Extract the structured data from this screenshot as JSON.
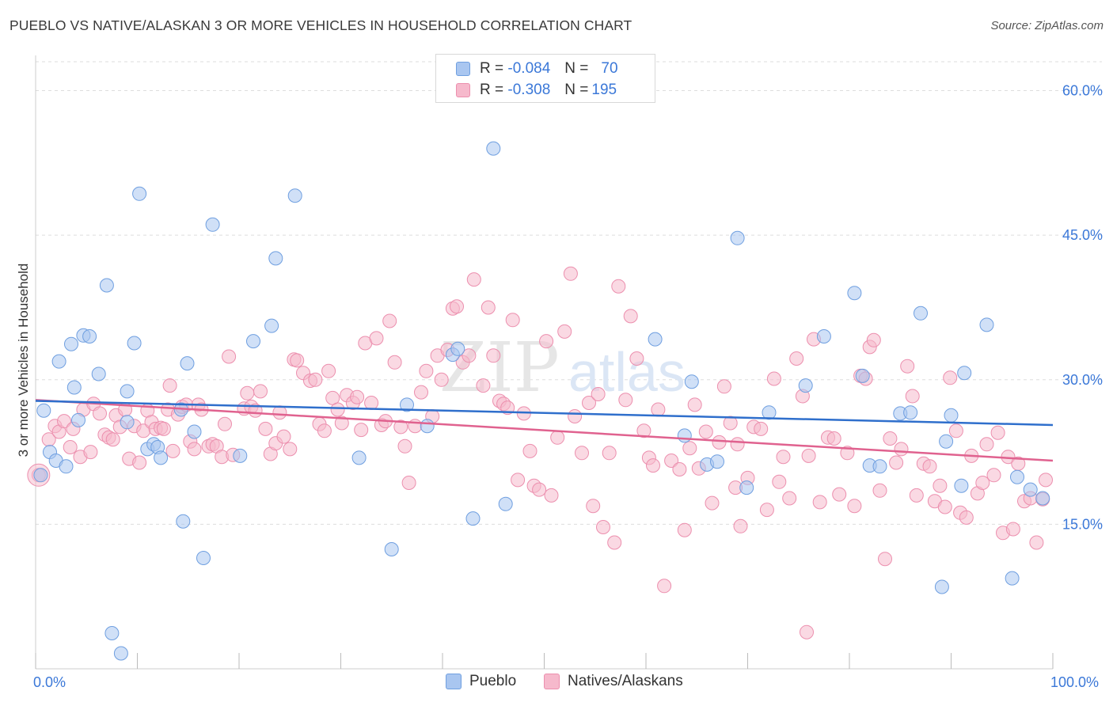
{
  "title": "PUEBLO VS NATIVE/ALASKAN 3 OR MORE VEHICLES IN HOUSEHOLD CORRELATION CHART",
  "source": "Source: ZipAtlas.com",
  "watermark": {
    "zip": "ZIP",
    "atlas": "atlas"
  },
  "legend": {
    "rows": [
      {
        "r_label": "R =",
        "r_value": "-0.084",
        "n_label": "N =",
        "n_value": "70"
      },
      {
        "r_label": "R =",
        "r_value": "-0.308",
        "n_label": "N =",
        "n_value": "195"
      }
    ]
  },
  "bottom_legend": [
    "Pueblo",
    "Natives/Alaskans"
  ],
  "colors": {
    "pueblo_fill": "#a9c6f0",
    "pueblo_stroke": "#6f9fe0",
    "pueblo_line": "#2f6fcc",
    "native_fill": "#f6b9cc",
    "native_stroke": "#ec8fae",
    "native_line": "#e0628f",
    "tick_label": "#3b78d8",
    "grid": "#dddddd"
  },
  "chart_data": {
    "type": "scatter",
    "title": "PUEBLO VS NATIVE/ALASKAN 3 OR MORE VEHICLES IN HOUSEHOLD CORRELATION CHART",
    "xlabel": "",
    "ylabel": "3 or more Vehicles in Household",
    "xlim": [
      0,
      100
    ],
    "ylim": [
      0,
      63
    ],
    "x_tick_labels": [
      "0.0%",
      "100.0%"
    ],
    "y_ticks": [
      15,
      30,
      45,
      60
    ],
    "y_tick_labels": [
      "15.0%",
      "30.0%",
      "45.0%",
      "60.0%"
    ],
    "series": [
      {
        "name": "Pueblo",
        "trend": {
          "x": [
            0,
            100
          ],
          "y": [
            27.8,
            25.3
          ]
        },
        "points": [
          [
            0.5,
            20.1
          ],
          [
            0.8,
            26.8
          ],
          [
            1.4,
            22.5
          ],
          [
            2.0,
            21.6
          ],
          [
            2.3,
            31.9
          ],
          [
            3.0,
            21.0
          ],
          [
            3.5,
            33.7
          ],
          [
            3.8,
            29.2
          ],
          [
            4.2,
            25.8
          ],
          [
            4.7,
            34.6
          ],
          [
            5.3,
            34.5
          ],
          [
            6.2,
            30.6
          ],
          [
            7.0,
            39.8
          ],
          [
            7.5,
            3.7
          ],
          [
            8.4,
            1.6
          ],
          [
            9.0,
            25.6
          ],
          [
            9.0,
            28.8
          ],
          [
            9.7,
            33.8
          ],
          [
            10.2,
            49.3
          ],
          [
            11.0,
            22.8
          ],
          [
            11.6,
            23.3
          ],
          [
            12.0,
            23.0
          ],
          [
            12.3,
            21.9
          ],
          [
            14.3,
            26.9
          ],
          [
            14.5,
            15.3
          ],
          [
            14.9,
            31.7
          ],
          [
            15.6,
            24.6
          ],
          [
            16.5,
            11.5
          ],
          [
            17.4,
            46.1
          ],
          [
            20.1,
            22.1
          ],
          [
            21.4,
            34.0
          ],
          [
            23.2,
            35.6
          ],
          [
            23.6,
            42.6
          ],
          [
            25.5,
            49.1
          ],
          [
            31.8,
            21.9
          ],
          [
            35.0,
            12.4
          ],
          [
            36.5,
            27.4
          ],
          [
            38.5,
            25.2
          ],
          [
            41.0,
            32.6
          ],
          [
            41.5,
            33.2
          ],
          [
            43.0,
            15.6
          ],
          [
            45.0,
            54.0
          ],
          [
            46.2,
            17.1
          ],
          [
            60.9,
            34.2
          ],
          [
            63.8,
            24.2
          ],
          [
            64.5,
            29.8
          ],
          [
            66.0,
            21.2
          ],
          [
            67.0,
            21.5
          ],
          [
            69.0,
            44.7
          ],
          [
            69.9,
            18.8
          ],
          [
            72.1,
            26.6
          ],
          [
            75.7,
            29.4
          ],
          [
            77.5,
            34.5
          ],
          [
            80.5,
            39.0
          ],
          [
            81.3,
            30.4
          ],
          [
            82.0,
            21.1
          ],
          [
            83.0,
            21.0
          ],
          [
            85.0,
            26.5
          ],
          [
            86.0,
            26.6
          ],
          [
            87.0,
            36.9
          ],
          [
            89.1,
            8.5
          ],
          [
            89.5,
            23.6
          ],
          [
            90.0,
            26.3
          ],
          [
            91.0,
            19.0
          ],
          [
            91.3,
            30.7
          ],
          [
            93.5,
            35.7
          ],
          [
            96.0,
            9.4
          ],
          [
            96.5,
            19.9
          ],
          [
            97.8,
            18.6
          ],
          [
            99.0,
            17.7
          ]
        ]
      },
      {
        "name": "Natives/Alaskans",
        "trend": {
          "x": [
            0,
            100
          ],
          "y": [
            27.9,
            21.6
          ]
        },
        "points": [
          [
            0.3,
            20.1
          ],
          [
            1.3,
            23.8
          ],
          [
            1.9,
            25.2
          ],
          [
            2.3,
            24.6
          ],
          [
            2.8,
            25.7
          ],
          [
            3.4,
            23.0
          ],
          [
            3.7,
            24.9
          ],
          [
            4.4,
            22.0
          ],
          [
            4.7,
            26.9
          ],
          [
            5.4,
            22.5
          ],
          [
            5.7,
            27.5
          ],
          [
            6.3,
            26.5
          ],
          [
            6.8,
            24.3
          ],
          [
            7.2,
            24.0
          ],
          [
            7.6,
            23.8
          ],
          [
            7.9,
            26.3
          ],
          [
            8.3,
            25.1
          ],
          [
            8.8,
            26.9
          ],
          [
            9.2,
            21.8
          ],
          [
            9.7,
            25.2
          ],
          [
            10.2,
            21.4
          ],
          [
            10.6,
            24.7
          ],
          [
            11.0,
            26.8
          ],
          [
            11.4,
            25.6
          ],
          [
            11.8,
            24.9
          ],
          [
            12.3,
            25.0
          ],
          [
            12.6,
            24.9
          ],
          [
            13.0,
            26.9
          ],
          [
            13.2,
            29.4
          ],
          [
            13.5,
            22.6
          ],
          [
            14.0,
            26.4
          ],
          [
            14.4,
            27.2
          ],
          [
            14.8,
            27.4
          ],
          [
            15.2,
            23.6
          ],
          [
            15.6,
            22.8
          ],
          [
            16.0,
            27.4
          ],
          [
            16.3,
            26.9
          ],
          [
            17.0,
            23.1
          ],
          [
            17.4,
            23.3
          ],
          [
            17.8,
            23.1
          ],
          [
            18.3,
            22.0
          ],
          [
            18.6,
            25.4
          ],
          [
            19.0,
            32.4
          ],
          [
            19.4,
            22.2
          ],
          [
            20.5,
            27.0
          ],
          [
            20.8,
            28.6
          ],
          [
            21.2,
            27.2
          ],
          [
            21.6,
            26.8
          ],
          [
            22.1,
            28.8
          ],
          [
            22.6,
            24.9
          ],
          [
            23.1,
            22.3
          ],
          [
            23.6,
            23.4
          ],
          [
            24.0,
            26.6
          ],
          [
            24.4,
            24.1
          ],
          [
            25.0,
            22.8
          ],
          [
            25.4,
            32.1
          ],
          [
            25.7,
            32.0
          ],
          [
            26.3,
            30.7
          ],
          [
            27.0,
            29.9
          ],
          [
            27.5,
            30.0
          ],
          [
            27.9,
            25.4
          ],
          [
            28.4,
            24.7
          ],
          [
            28.8,
            30.9
          ],
          [
            29.2,
            28.1
          ],
          [
            29.7,
            26.9
          ],
          [
            30.1,
            25.5
          ],
          [
            30.6,
            28.4
          ],
          [
            31.2,
            27.6
          ],
          [
            31.6,
            28.2
          ],
          [
            32.0,
            24.8
          ],
          [
            32.4,
            33.8
          ],
          [
            33.0,
            27.6
          ],
          [
            33.5,
            34.3
          ],
          [
            34.0,
            25.3
          ],
          [
            34.4,
            25.7
          ],
          [
            34.8,
            36.1
          ],
          [
            35.3,
            31.8
          ],
          [
            35.9,
            25.1
          ],
          [
            36.3,
            23.1
          ],
          [
            36.7,
            19.3
          ],
          [
            37.3,
            25.2
          ],
          [
            37.9,
            28.7
          ],
          [
            38.4,
            30.9
          ],
          [
            39.0,
            26.2
          ],
          [
            39.5,
            32.5
          ],
          [
            39.9,
            30.0
          ],
          [
            40.5,
            33.1
          ],
          [
            41.0,
            37.4
          ],
          [
            41.4,
            37.6
          ],
          [
            42.0,
            31.8
          ],
          [
            42.6,
            32.5
          ],
          [
            43.1,
            40.4
          ],
          [
            44.0,
            29.4
          ],
          [
            44.5,
            37.5
          ],
          [
            45.0,
            32.5
          ],
          [
            45.6,
            27.8
          ],
          [
            46.0,
            27.5
          ],
          [
            46.4,
            27.1
          ],
          [
            46.9,
            36.2
          ],
          [
            47.4,
            19.6
          ],
          [
            48.0,
            26.5
          ],
          [
            48.6,
            22.6
          ],
          [
            49.0,
            19.0
          ],
          [
            49.5,
            18.6
          ],
          [
            50.2,
            34.0
          ],
          [
            50.7,
            18.0
          ],
          [
            51.3,
            24.0
          ],
          [
            52.0,
            35.0
          ],
          [
            52.6,
            41.0
          ],
          [
            53.0,
            26.2
          ],
          [
            53.7,
            22.4
          ],
          [
            54.4,
            27.6
          ],
          [
            54.8,
            16.9
          ],
          [
            55.3,
            28.5
          ],
          [
            55.8,
            14.7
          ],
          [
            56.4,
            22.4
          ],
          [
            56.9,
            13.1
          ],
          [
            57.3,
            39.7
          ],
          [
            58.0,
            27.9
          ],
          [
            58.5,
            36.6
          ],
          [
            59.1,
            32.2
          ],
          [
            59.8,
            24.7
          ],
          [
            60.3,
            21.9
          ],
          [
            60.7,
            21.1
          ],
          [
            61.2,
            26.9
          ],
          [
            61.8,
            8.6
          ],
          [
            62.5,
            21.6
          ],
          [
            63.3,
            20.7
          ],
          [
            63.8,
            14.4
          ],
          [
            64.3,
            22.9
          ],
          [
            64.8,
            27.4
          ],
          [
            65.2,
            20.8
          ],
          [
            65.9,
            24.6
          ],
          [
            66.5,
            17.2
          ],
          [
            67.2,
            23.5
          ],
          [
            67.7,
            29.3
          ],
          [
            68.3,
            25.5
          ],
          [
            68.8,
            18.8
          ],
          [
            69.3,
            14.8
          ],
          [
            70.0,
            19.8
          ],
          [
            70.6,
            25.1
          ],
          [
            71.3,
            24.9
          ],
          [
            71.9,
            16.5
          ],
          [
            72.6,
            30.1
          ],
          [
            73.1,
            19.4
          ],
          [
            73.5,
            22.0
          ],
          [
            74.1,
            17.7
          ],
          [
            74.8,
            32.2
          ],
          [
            75.4,
            28.3
          ],
          [
            76.0,
            22.1
          ],
          [
            76.5,
            34.2
          ],
          [
            77.1,
            17.3
          ],
          [
            77.9,
            24.0
          ],
          [
            78.5,
            23.9
          ],
          [
            79.0,
            18.1
          ],
          [
            79.8,
            22.4
          ],
          [
            80.5,
            16.9
          ],
          [
            81.1,
            30.4
          ],
          [
            81.6,
            30.1
          ],
          [
            82.0,
            33.4
          ],
          [
            82.4,
            34.1
          ],
          [
            83.0,
            18.5
          ],
          [
            83.5,
            11.4
          ],
          [
            84.0,
            23.9
          ],
          [
            84.6,
            21.4
          ],
          [
            85.1,
            22.8
          ],
          [
            85.7,
            31.4
          ],
          [
            86.2,
            28.3
          ],
          [
            86.6,
            18.0
          ],
          [
            87.3,
            21.3
          ],
          [
            87.9,
            21.0
          ],
          [
            88.4,
            17.4
          ],
          [
            88.9,
            19.0
          ],
          [
            89.4,
            16.8
          ],
          [
            89.9,
            30.2
          ],
          [
            90.5,
            24.7
          ],
          [
            90.9,
            16.2
          ],
          [
            91.5,
            15.7
          ],
          [
            92.0,
            22.1
          ],
          [
            92.6,
            18.2
          ],
          [
            93.1,
            19.3
          ],
          [
            93.5,
            23.3
          ],
          [
            94.2,
            20.1
          ],
          [
            94.6,
            24.5
          ],
          [
            95.1,
            14.1
          ],
          [
            95.6,
            22.0
          ],
          [
            96.1,
            14.5
          ],
          [
            96.6,
            21.3
          ],
          [
            97.2,
            17.4
          ],
          [
            97.8,
            17.7
          ],
          [
            98.4,
            13.1
          ],
          [
            99.0,
            17.6
          ],
          [
            99.3,
            19.6
          ],
          [
            75.8,
            3.8
          ],
          [
            69.0,
            23.3
          ]
        ]
      }
    ]
  }
}
